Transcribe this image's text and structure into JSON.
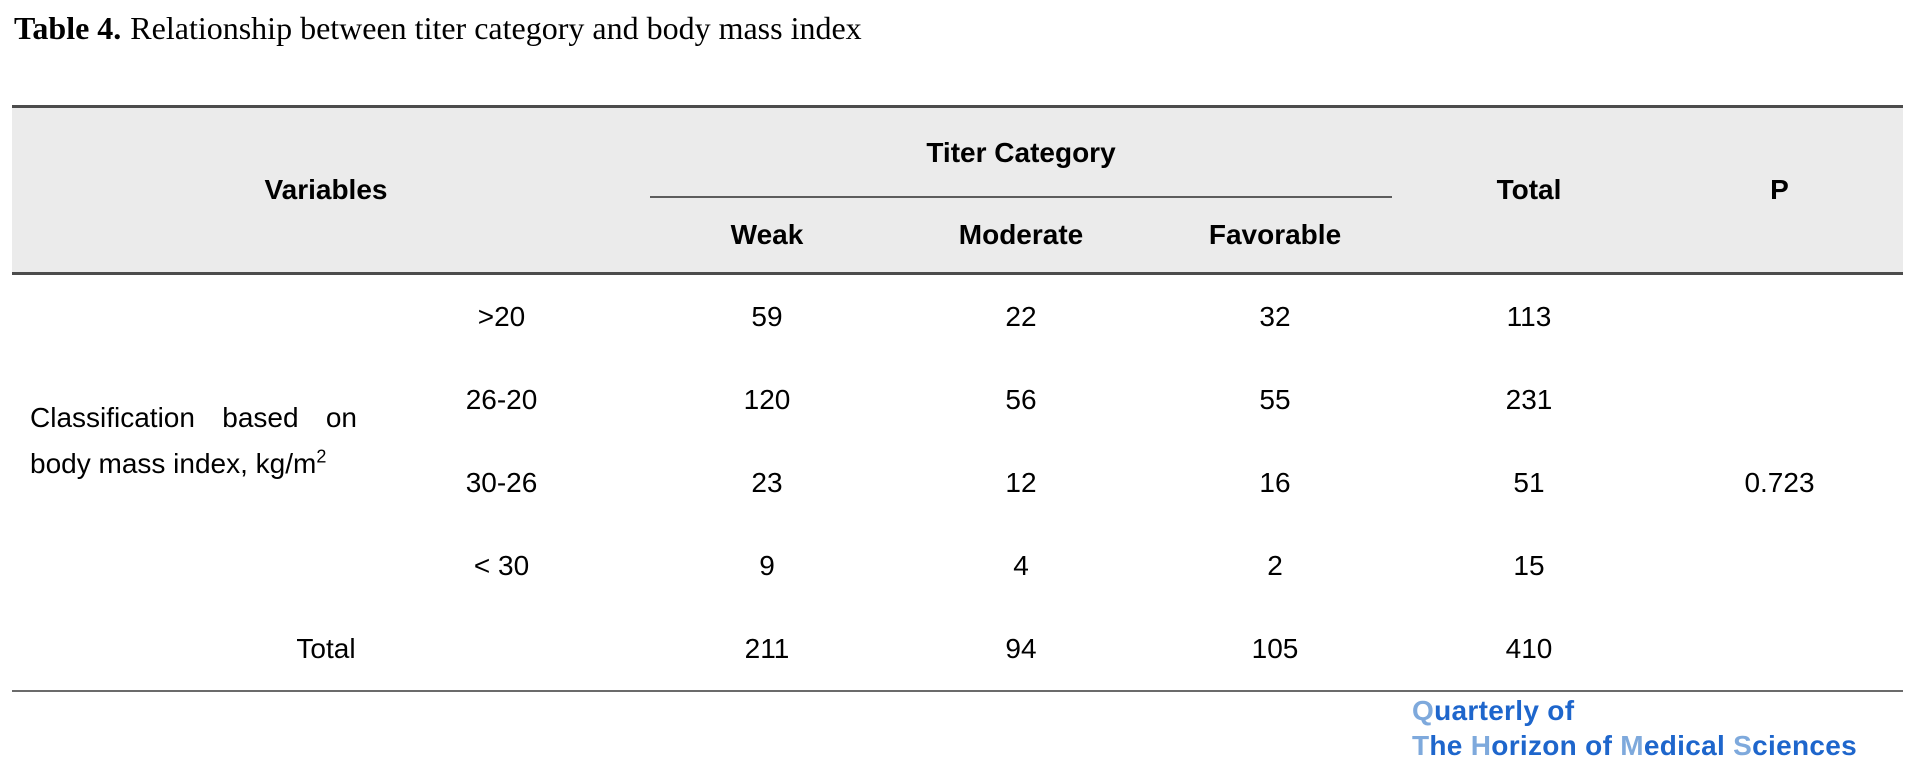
{
  "title": {
    "label": "Table 4.",
    "text": "Relationship between titer category and body mass index"
  },
  "table": {
    "header": {
      "variables": "Variables",
      "titer_category": "Titer Category",
      "weak": "Weak",
      "moderate": "Moderate",
      "favorable": "Favorable",
      "total": "Total",
      "p": "P"
    },
    "group_label": {
      "line1": "Classification based on",
      "line2": "body mass index, kg/m",
      "superscript": "2"
    },
    "rows": [
      {
        "category": ">20",
        "weak": "59",
        "moderate": "22",
        "favorable": "32",
        "total": "113"
      },
      {
        "category": "26-20",
        "weak": "120",
        "moderate": "56",
        "favorable": "55",
        "total": "231"
      },
      {
        "category": "30-26",
        "weak": "23",
        "moderate": "12",
        "favorable": "16",
        "total": "51"
      },
      {
        "category": "< 30",
        "weak": "9",
        "moderate": "4",
        "favorable": "2",
        "total": "15"
      }
    ],
    "p_value": "0.723",
    "totals": {
      "label": "Total",
      "weak": "211",
      "moderate": "94",
      "favorable": "105",
      "total": "410"
    }
  },
  "logo": {
    "line1": [
      {
        "text": "Q"
      },
      {
        "text": "uarterly of"
      }
    ],
    "line2": [
      {
        "text": "T"
      },
      {
        "text": "he "
      },
      {
        "text": "H"
      },
      {
        "text": "orizon of "
      },
      {
        "text": "M"
      },
      {
        "text": "edical "
      },
      {
        "text": "S"
      },
      {
        "text": "ciences"
      }
    ]
  },
  "colors": {
    "header_background": "#ebebeb",
    "border_dark": "#4c4c4c",
    "border_light": "#6b6b6b",
    "logo_dark_blue": "#1e66cc",
    "logo_light_blue": "#7ea9dc"
  }
}
